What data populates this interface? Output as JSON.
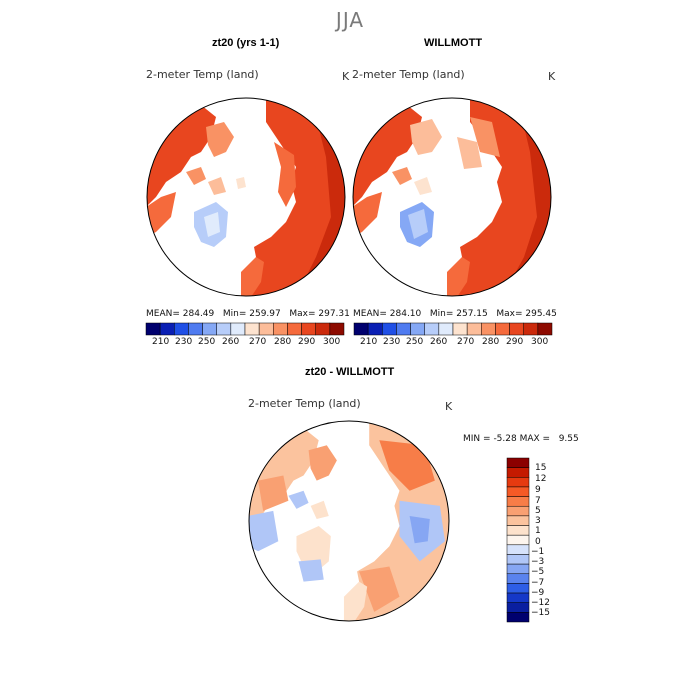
{
  "season_title": "JJA",
  "panels": [
    {
      "id": "model",
      "title": "zt20 (yrs 1-1)",
      "variable": "2-meter Temp (land)",
      "units": "K",
      "mean_label": "MEAN=",
      "mean": "284.49",
      "min_label": "Min=",
      "min": "259.97",
      "max_label": "Max=",
      "max": "297.31"
    },
    {
      "id": "obs",
      "title": "WILLMOTT",
      "variable": "2-meter Temp (land)",
      "units": "K",
      "mean_label": "MEAN=",
      "mean": "284.10",
      "min_label": "Min=",
      "min": "257.15",
      "max_label": "Max=",
      "max": "295.45"
    }
  ],
  "abs_colorbar": {
    "ticks": [
      "210",
      "230",
      "250",
      "260",
      "270",
      "280",
      "290",
      "300"
    ],
    "colors": [
      "#00006e",
      "#0a1fb4",
      "#1f4fe6",
      "#4f7bf0",
      "#85a8f5",
      "#b7cdf9",
      "#e0ebfc",
      "#fde3cf",
      "#fcbd9a",
      "#f99264",
      "#f56a3c",
      "#e8461f",
      "#cb2a0c",
      "#8d0a00"
    ]
  },
  "diff": {
    "title": "zt20 - WILLMOTT",
    "variable": "2-meter Temp (land)",
    "units": "K",
    "min_label": "MIN =",
    "min": "-5.28",
    "max_label": "MAX =",
    "max": "9.55",
    "colorbar": {
      "ticks": [
        "15",
        "12",
        "9",
        "7",
        "5",
        "3",
        "1",
        "0",
        "−1",
        "−3",
        "−5",
        "−7",
        "−9",
        "−12",
        "−15"
      ],
      "colors": [
        "#8b0000",
        "#c41a00",
        "#e63a10",
        "#f55a26",
        "#f77d48",
        "#f9a072",
        "#fbc39e",
        "#fde2cc",
        "#fdf5ee",
        "#d6e2fb",
        "#b0c6f7",
        "#86a6f3",
        "#5a83ee",
        "#2e5ee6",
        "#1538c8",
        "#0a1fa0",
        "#00006e"
      ]
    }
  },
  "chart_data": [
    {
      "type": "heatmap",
      "title": "zt20 (yrs 1-1)",
      "subtitle": "2-meter Temp (land)",
      "units": "K",
      "projection": "north polar stereographic",
      "stats": {
        "mean": 284.49,
        "min": 259.97,
        "max": 297.31
      },
      "colorbar_levels": [
        210,
        230,
        250,
        260,
        270,
        280,
        290,
        300
      ]
    },
    {
      "type": "heatmap",
      "title": "WILLMOTT",
      "subtitle": "2-meter Temp (land)",
      "units": "K",
      "projection": "north polar stereographic",
      "stats": {
        "mean": 284.1,
        "min": 257.15,
        "max": 295.45
      },
      "colorbar_levels": [
        210,
        230,
        250,
        260,
        270,
        280,
        290,
        300
      ]
    },
    {
      "type": "heatmap",
      "title": "zt20 - WILLMOTT",
      "subtitle": "2-meter Temp (land)",
      "units": "K",
      "projection": "north polar stereographic",
      "stats": {
        "min": -5.28,
        "max": 9.55
      },
      "colorbar_levels": [
        15,
        12,
        9,
        7,
        5,
        3,
        1,
        0,
        -1,
        -3,
        -5,
        -7,
        -9,
        -12,
        -15
      ]
    }
  ]
}
